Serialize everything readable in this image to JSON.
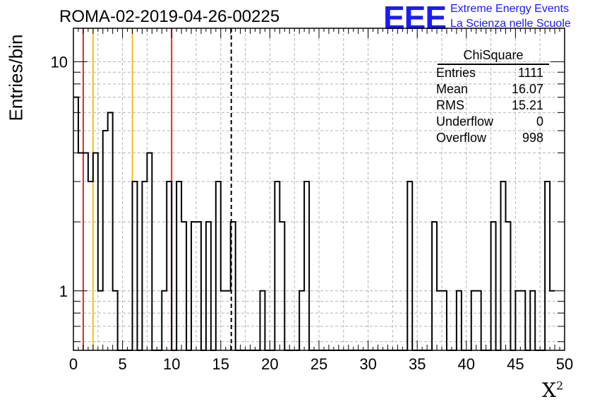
{
  "header": {
    "title": "ROMA-02-2019-04-26-00225",
    "logo_text": "EEE",
    "logo_line1": "Extreme Energy Events",
    "logo_line2": "La Scienza nelle Scuole"
  },
  "stats": {
    "title": "ChiSquare",
    "rows": [
      {
        "label": "Entries",
        "value": "1111"
      },
      {
        "label": "Mean",
        "value": "16.07"
      },
      {
        "label": "RMS",
        "value": "15.21"
      },
      {
        "label": "Underflow",
        "value": "0"
      },
      {
        "label": "Overflow",
        "value": "998"
      }
    ]
  },
  "chart_data": {
    "type": "bar",
    "title": "ROMA-02-2019-04-26-00225",
    "xlabel": "X²",
    "ylabel": "Entries/bin",
    "xlim": [
      0,
      50
    ],
    "ylim": [
      0.55,
      14
    ],
    "yscale": "log",
    "grid": true,
    "bin_width": 0.5,
    "xticks": [
      "0",
      "5",
      "10",
      "15",
      "20",
      "25",
      "30",
      "35",
      "40",
      "45",
      "50"
    ],
    "yticks": [
      "1",
      "10"
    ],
    "values": [
      7,
      4,
      4,
      3,
      4,
      1,
      5,
      6,
      1,
      0,
      0,
      0,
      3,
      0,
      3,
      4,
      0,
      0,
      1,
      3,
      0,
      3,
      2,
      0,
      2,
      2,
      0,
      2,
      0,
      3,
      1,
      1,
      2,
      0,
      0,
      0,
      0,
      0,
      1,
      0,
      0,
      3,
      2,
      0,
      0,
      0,
      1,
      3,
      0,
      0,
      0,
      0,
      0,
      0,
      0,
      0,
      0,
      0,
      0,
      0,
      0,
      0,
      0,
      0,
      0,
      0,
      0,
      0,
      3,
      0,
      0,
      0,
      0,
      2,
      1,
      1,
      0,
      0,
      1,
      0,
      0,
      1,
      1,
      0,
      0,
      2,
      0,
      3,
      2,
      0,
      1,
      1,
      0,
      1,
      0,
      0,
      3,
      1
    ],
    "vertical_lines": [
      {
        "x": 1,
        "color": "#e8281e",
        "style": "solid"
      },
      {
        "x": 2,
        "color": "#f2c018",
        "style": "solid"
      },
      {
        "x": 6,
        "color": "#f2c018",
        "style": "solid"
      },
      {
        "x": 10,
        "color": "#e8281e",
        "style": "solid"
      },
      {
        "x": 16.07,
        "color": "#000000",
        "style": "dashed"
      }
    ],
    "line_color": "#000000",
    "grid_color": "#b4b4b4"
  }
}
